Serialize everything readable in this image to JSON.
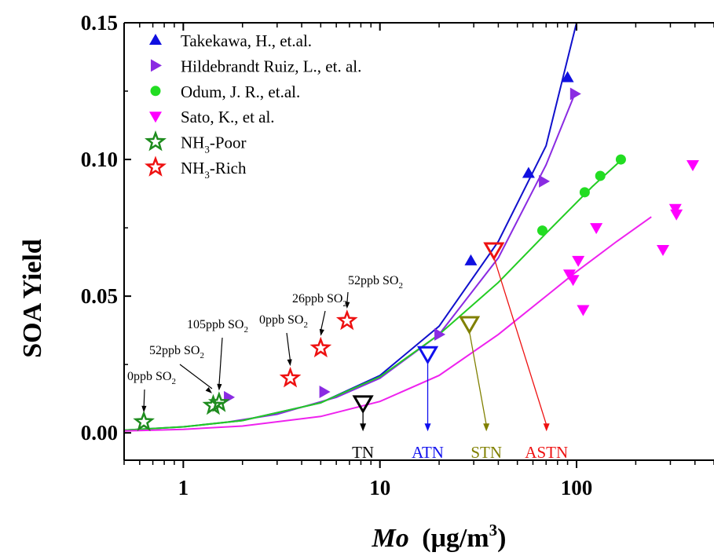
{
  "chart_data": {
    "type": "scatter",
    "xlabel": "Mo",
    "xlabel_unit": "(μg/m",
    "xlabel_unit_sup": "3",
    "xlabel_unit_close": ")",
    "ylabel": "SOA Yield",
    "x_scale": "log",
    "xlim": [
      0.5,
      500
    ],
    "ylim": [
      -0.01,
      0.15
    ],
    "grid": false,
    "legend_position": "top-left",
    "x_ticks": [
      {
        "value": 1,
        "label": "1"
      },
      {
        "value": 10,
        "label": "10"
      },
      {
        "value": 100,
        "label": "100"
      }
    ],
    "y_ticks": [
      {
        "value": 0.0,
        "label": "0.00"
      },
      {
        "value": 0.05,
        "label": "0.05"
      },
      {
        "value": 0.1,
        "label": "0.10"
      },
      {
        "value": 0.15,
        "label": "0.15"
      }
    ],
    "series": [
      {
        "name": "Takekawa, H.,  et.al.",
        "marker": "triangle-up",
        "color": "#1010e0",
        "points": [
          [
            29,
            0.063
          ],
          [
            57,
            0.095
          ],
          [
            90,
            0.13
          ]
        ]
      },
      {
        "name": "Hildebrandt Ruiz, L., et. al.",
        "marker": "triangle-right",
        "color": "#8a2be2",
        "points": [
          [
            1.7,
            0.013
          ],
          [
            5.2,
            0.015
          ],
          [
            20,
            0.036
          ],
          [
            68,
            0.092
          ],
          [
            98,
            0.124
          ]
        ]
      },
      {
        "name": "Odum, J. R., et.al.",
        "marker": "circle",
        "color": "#22dd22",
        "points": [
          [
            67,
            0.074
          ],
          [
            110,
            0.088
          ],
          [
            132,
            0.094
          ],
          [
            168,
            0.1
          ]
        ]
      },
      {
        "name": "Sato, K., et al.",
        "marker": "triangle-down",
        "color": "#ff00ff",
        "points": [
          [
            92,
            0.058
          ],
          [
            96,
            0.056
          ],
          [
            102,
            0.063
          ],
          [
            108,
            0.045
          ],
          [
            126,
            0.075
          ],
          [
            275,
            0.067
          ],
          [
            318,
            0.082
          ],
          [
            322,
            0.08
          ],
          [
            390,
            0.098
          ]
        ]
      },
      {
        "name_prefix": "NH",
        "name_sub": "3",
        "name_suffix": "-Poor",
        "marker": "star-open",
        "color": "#1e8c1e",
        "points": [
          [
            0.63,
            0.004
          ],
          [
            1.42,
            0.01
          ],
          [
            1.52,
            0.011
          ]
        ]
      },
      {
        "name_prefix": "NH",
        "name_sub": "3",
        "name_suffix": "-Rich",
        "marker": "star-open",
        "color": "#ee1111",
        "points": [
          [
            3.5,
            0.02
          ],
          [
            5.0,
            0.031
          ],
          [
            6.8,
            0.041
          ]
        ]
      }
    ],
    "fit_curves": [
      {
        "color": "#1010cc",
        "x_range": [
          0.5,
          100
        ],
        "points": [
          [
            0.5,
            0.001
          ],
          [
            1,
            0.0022
          ],
          [
            2,
            0.0045
          ],
          [
            5,
            0.011
          ],
          [
            10,
            0.021
          ],
          [
            20,
            0.039
          ],
          [
            40,
            0.07
          ],
          [
            70,
            0.105
          ],
          [
            100,
            0.15
          ]
        ]
      },
      {
        "color": "#8a2be2",
        "x_range": [
          1.7,
          98
        ],
        "points": [
          [
            1.7,
            0.004
          ],
          [
            3,
            0.0068
          ],
          [
            6,
            0.013
          ],
          [
            10,
            0.02
          ],
          [
            20,
            0.036
          ],
          [
            40,
            0.064
          ],
          [
            70,
            0.098
          ],
          [
            98,
            0.124
          ]
        ]
      },
      {
        "color": "#22cc22",
        "x_range": [
          0.5,
          170
        ],
        "points": [
          [
            0.5,
            0.001
          ],
          [
            1,
            0.0022
          ],
          [
            2,
            0.0045
          ],
          [
            5,
            0.011
          ],
          [
            10,
            0.0205
          ],
          [
            20,
            0.036
          ],
          [
            40,
            0.055
          ],
          [
            70,
            0.073
          ],
          [
            120,
            0.09
          ],
          [
            170,
            0.1
          ]
        ]
      },
      {
        "color": "#ee22ee",
        "x_range": [
          0.5,
          240
        ],
        "points": [
          [
            0.5,
            0.0007
          ],
          [
            1,
            0.0013
          ],
          [
            2,
            0.0025
          ],
          [
            5,
            0.006
          ],
          [
            10,
            0.0115
          ],
          [
            20,
            0.021
          ],
          [
            40,
            0.036
          ],
          [
            70,
            0.05
          ],
          [
            100,
            0.059
          ],
          [
            160,
            0.07
          ],
          [
            240,
            0.079
          ]
        ]
      }
    ],
    "conditions": [
      {
        "label": "TN",
        "color": "#000000",
        "x": 8.2,
        "y": 0.011
      },
      {
        "label": "ATN",
        "color": "#1010ee",
        "x": 17.5,
        "y": 0.029
      },
      {
        "label": "STN",
        "color": "#808000",
        "x": 28.5,
        "y": 0.04
      },
      {
        "label": "ASTN",
        "color": "#ee1111",
        "x": 38,
        "y": 0.067
      }
    ],
    "annotations": [
      {
        "text": "0ppb SO",
        "sub": "2",
        "target_x": 0.63,
        "target_y": 0.004
      },
      {
        "text": "52ppb SO",
        "sub": "2",
        "target_x": 1.4,
        "target_y": 0.011
      },
      {
        "text": "105ppb SO",
        "sub": "2",
        "target_x": 1.52,
        "target_y": 0.012
      },
      {
        "text": "0ppb SO",
        "sub": "2",
        "target_x": 3.5,
        "target_y": 0.021
      },
      {
        "text": "26ppb SO",
        "sub": "2",
        "target_x": 5.0,
        "target_y": 0.032
      },
      {
        "text": "52ppb SO",
        "sub": "2",
        "target_x": 6.8,
        "target_y": 0.042
      }
    ]
  }
}
